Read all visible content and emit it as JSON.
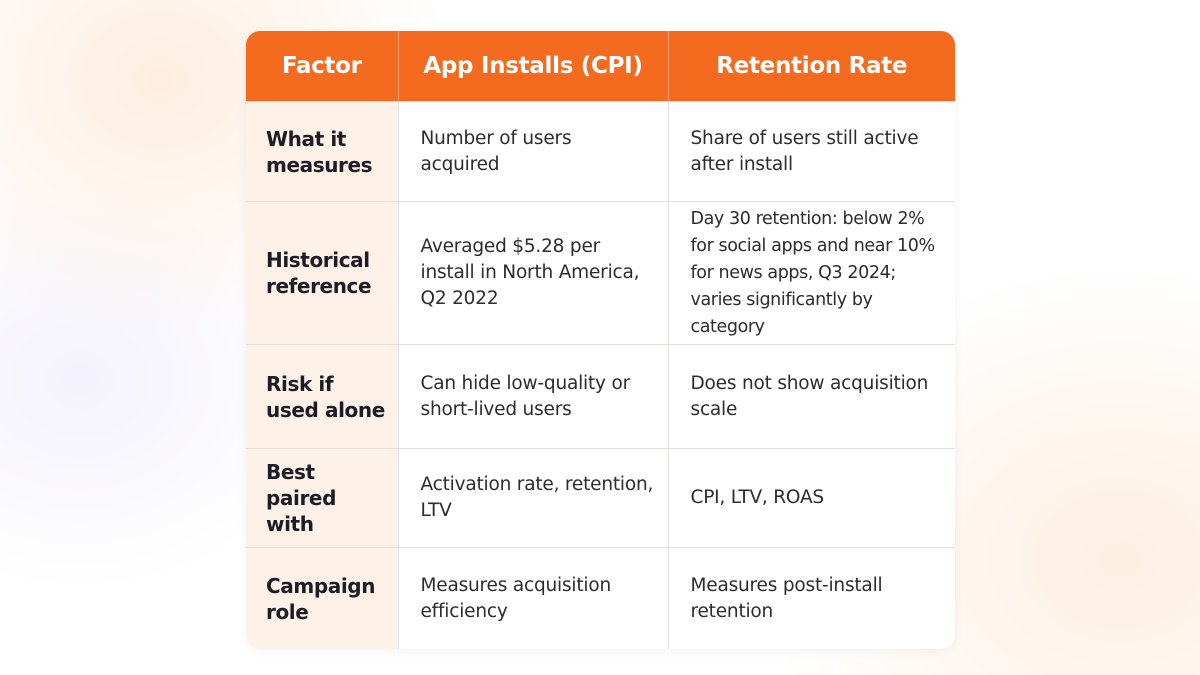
{
  "table": {
    "headers": [
      "Factor",
      "App Installs (CPI)",
      "Retention Rate"
    ],
    "rows": [
      {
        "factor": "What it measures",
        "cpi": "Number of users acquired",
        "retention": "Share of users still active after install"
      },
      {
        "factor": "Historical reference",
        "cpi": "Averaged $5.28 per install in North America, Q2 2022",
        "retention": "Day 30 retention: below 2% for social apps and near 10% for news apps, Q3 2024; varies significantly by category"
      },
      {
        "factor": "Risk if used alone",
        "cpi": "Can hide low-quality or short-lived users",
        "retention": "Does not show acquisition scale"
      },
      {
        "factor": "Best paired with",
        "cpi": "Activation rate, retention, LTV",
        "retention": "CPI, LTV, ROAS"
      },
      {
        "factor": "Campaign role",
        "cpi": "Measures acquisition efficiency",
        "retention": "Measures post-install retention"
      }
    ]
  },
  "colors": {
    "header_bg": "#f46a1f",
    "header_text": "#ffffff",
    "factor_col_bg": "#fdf1e8",
    "border": "#e3e0dd"
  }
}
